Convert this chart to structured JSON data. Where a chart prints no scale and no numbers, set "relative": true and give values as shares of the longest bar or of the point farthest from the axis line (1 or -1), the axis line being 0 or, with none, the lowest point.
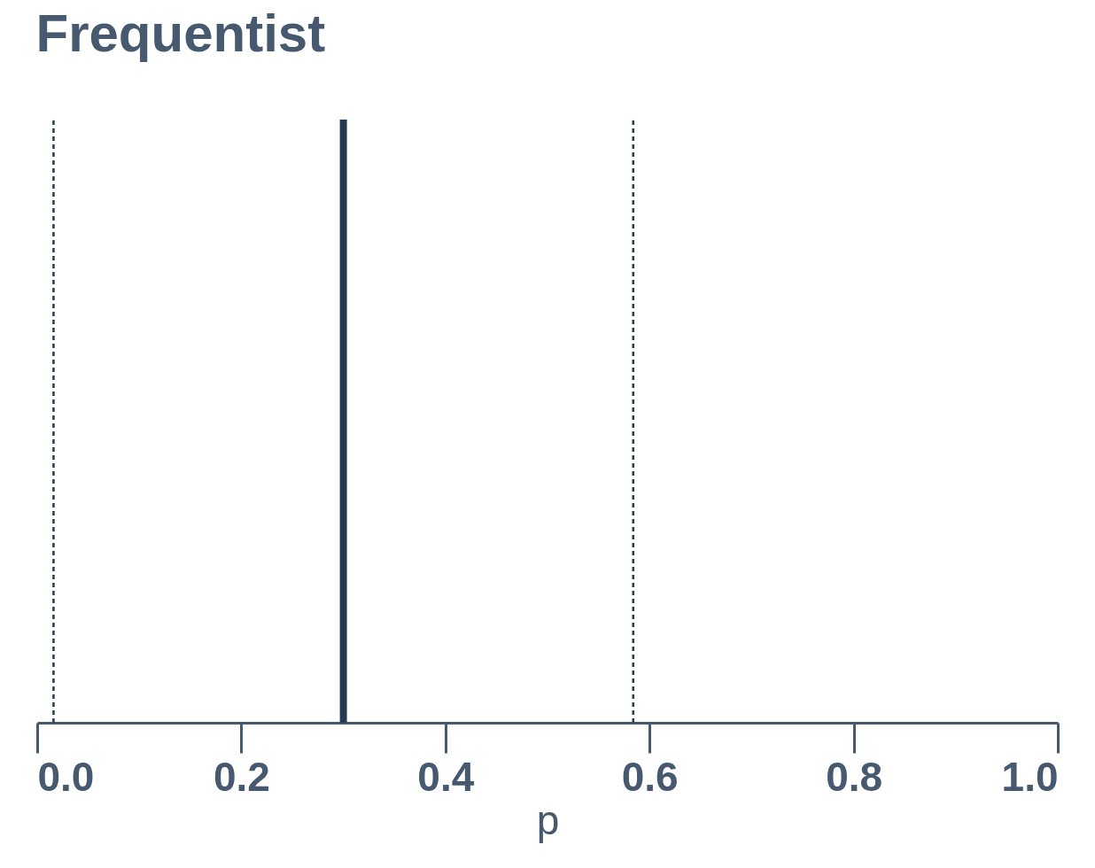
{
  "chart_data": {
    "type": "line",
    "title": "Frequentist",
    "xlabel": "p",
    "relative": true,
    "xlim": [
      0,
      1
    ],
    "xticks": [
      {
        "value": 0,
        "label": "0.0"
      },
      0.2,
      0.4,
      0.6,
      0.8,
      {
        "value": 1,
        "label": "1.0"
      }
    ],
    "tick_labels": "x",
    "grid": false,
    "marker": "none",
    "series": [
      {
        "x": [
          0.016,
          0.016
        ],
        "values": [
          0,
          1
        ],
        "color": "#253b53",
        "line_style": "dashed"
      },
      {
        "x": [
          0.3,
          0.3
        ],
        "values": [
          0,
          1
        ],
        "color": "#253b53",
        "line_style": "solid"
      },
      {
        "x": [
          0.584,
          0.584
        ],
        "values": [
          0,
          1
        ],
        "color": "#253b53",
        "line_style": "dashed"
      }
    ]
  }
}
